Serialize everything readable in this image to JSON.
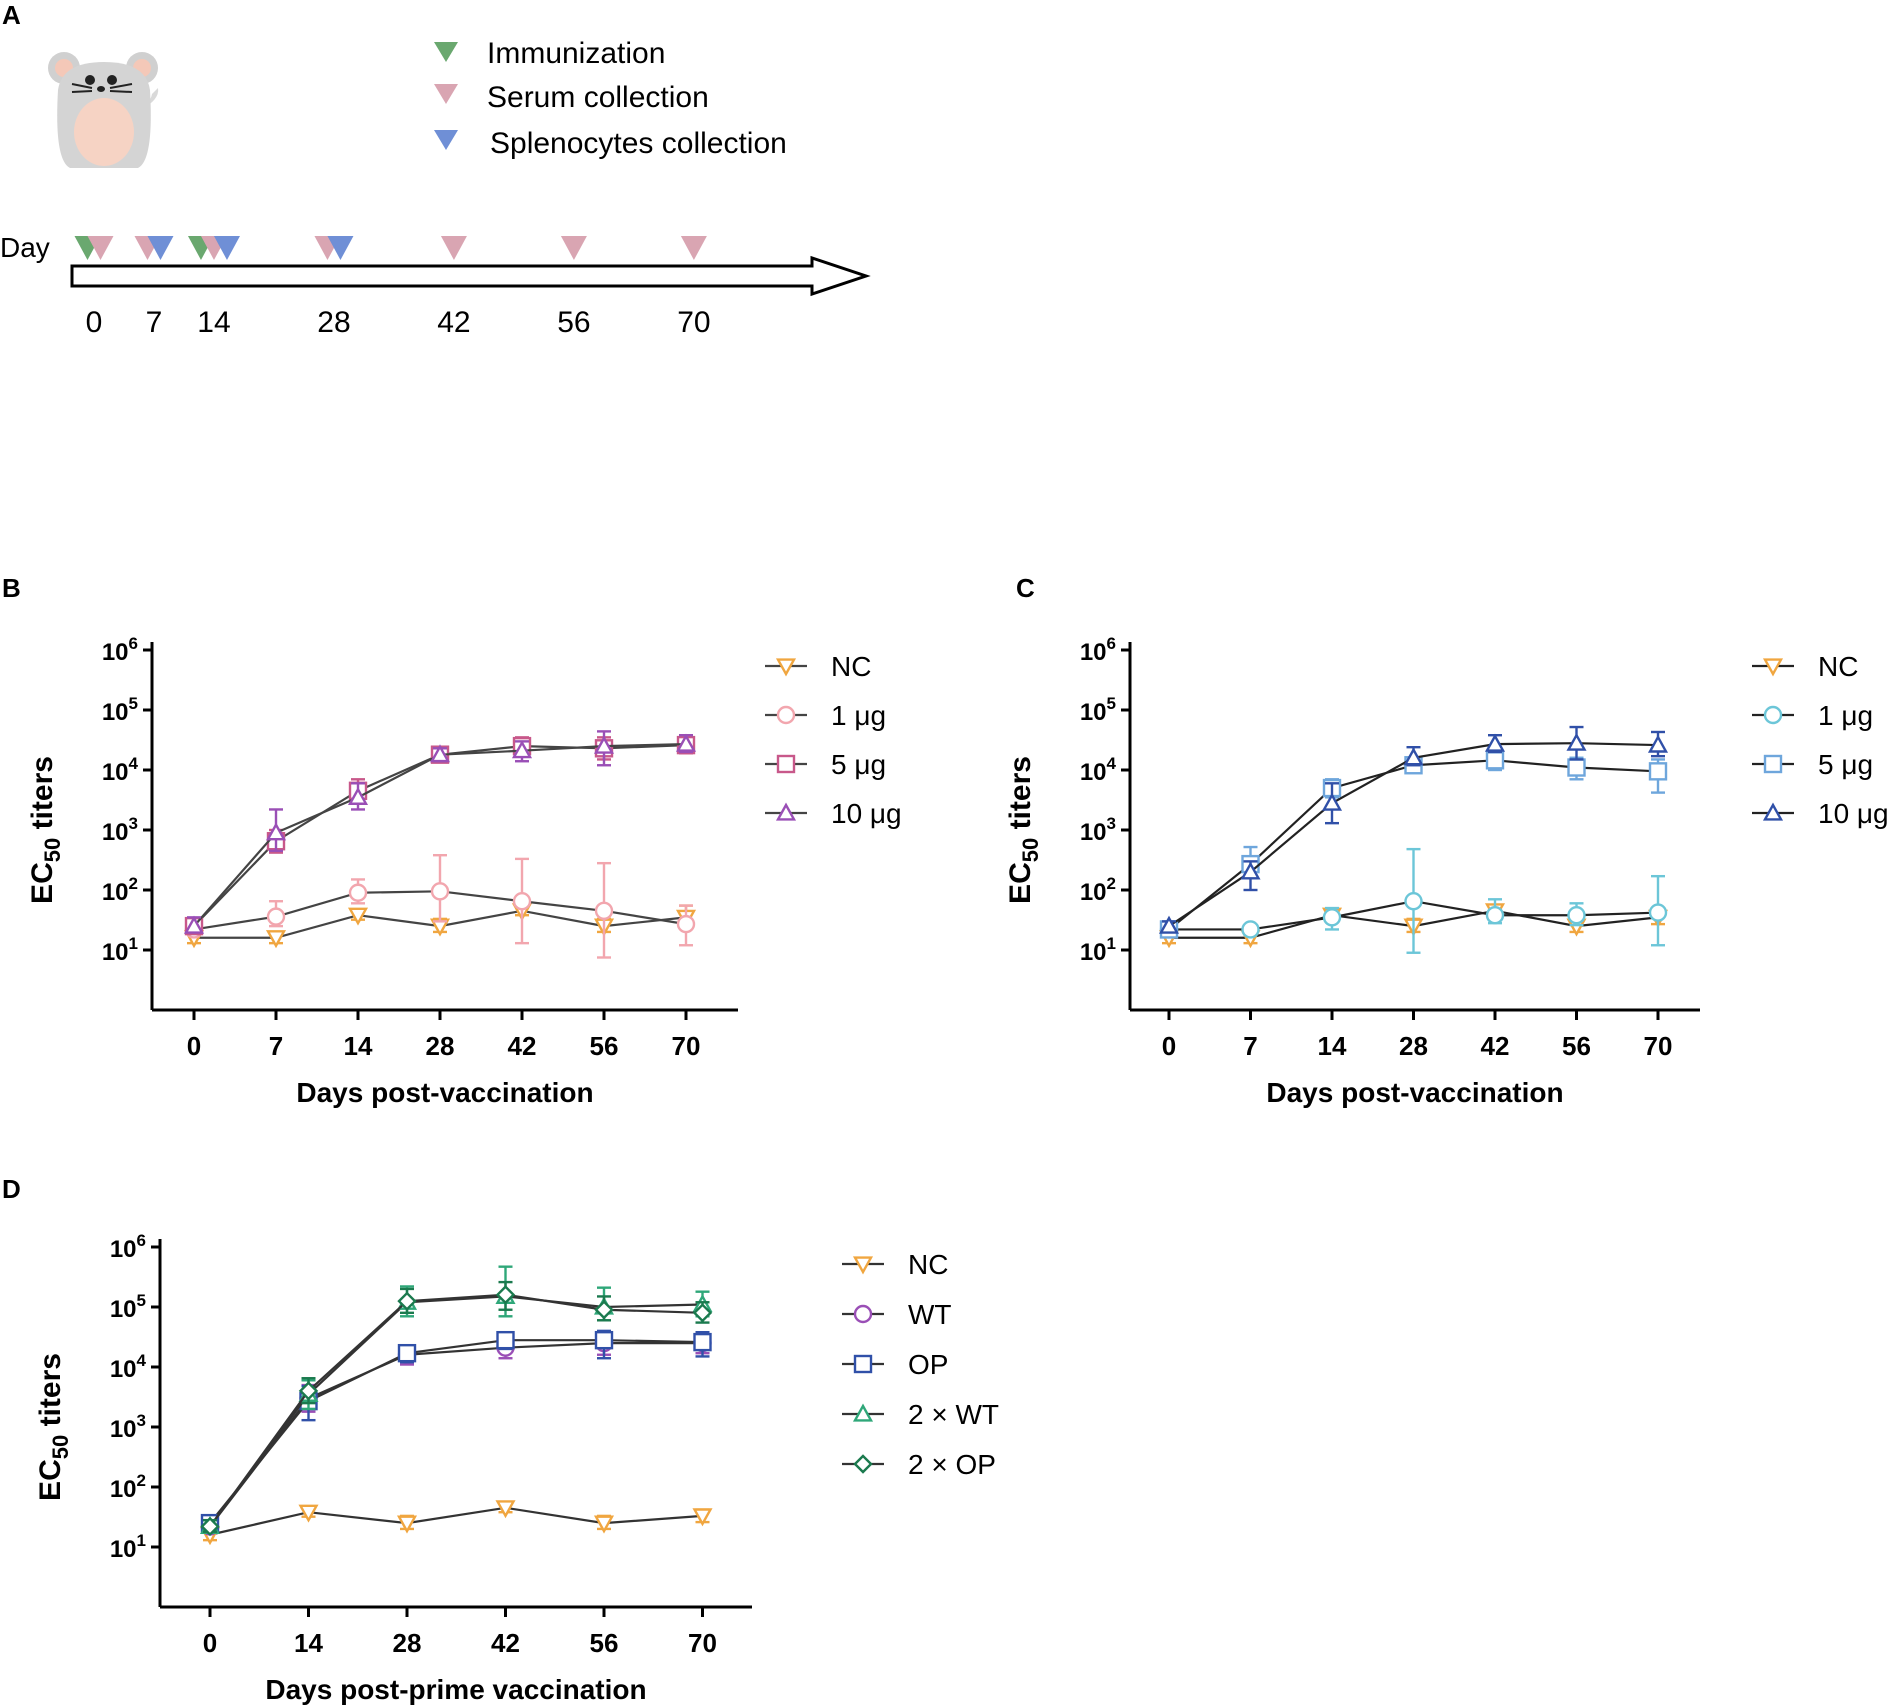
{
  "panel_a": {
    "label": "A",
    "legend": [
      {
        "label": "Immunization",
        "color": "#6aa86f"
      },
      {
        "label": "Serum collection",
        "color": "#d9a5b2"
      },
      {
        "label": "Splenocytes collection",
        "color": "#6f8fd6"
      }
    ],
    "day_label": "Day",
    "days": [
      "0",
      "7",
      "14",
      "28",
      "42",
      "56",
      "70"
    ],
    "events": [
      {
        "day": 0,
        "markers": [
          "immunization",
          "serum"
        ]
      },
      {
        "day": 7,
        "markers": [
          "serum",
          "splenocytes"
        ]
      },
      {
        "day": 14,
        "markers": [
          "immunization",
          "serum",
          "splenocytes"
        ]
      },
      {
        "day": 28,
        "markers": [
          "serum",
          "splenocytes"
        ]
      },
      {
        "day": 42,
        "markers": [
          "serum"
        ]
      },
      {
        "day": 56,
        "markers": [
          "serum"
        ]
      },
      {
        "day": 70,
        "markers": [
          "serum"
        ]
      }
    ]
  },
  "chart_data": [
    {
      "panel": "B",
      "type": "line",
      "xlabel": "Days post-vaccination",
      "ylabel_main": "EC",
      "ylabel_sub": "50",
      "ylabel_rest": " titers",
      "x": [
        0,
        7,
        14,
        28,
        42,
        56,
        70
      ],
      "x_tick_labels": [
        "0",
        "7",
        "14",
        "28",
        "42",
        "56",
        "70"
      ],
      "y_scale": "log10",
      "ylim_exp": [
        0,
        6
      ],
      "y_tick_exponents": [
        "1",
        "2",
        "3",
        "4",
        "5",
        "6"
      ],
      "line_color": "#444444",
      "series": [
        {
          "name": "NC",
          "marker": "triangle-down",
          "color": "#f0a640",
          "values": [
            16,
            16,
            38,
            25,
            45,
            25,
            35
          ],
          "err_hi": [
            20,
            20,
            45,
            33,
            52,
            33,
            55
          ],
          "err_lo": [
            13,
            13,
            32,
            20,
            38,
            20,
            25
          ]
        },
        {
          "name": "1 μg",
          "marker": "circle",
          "color": "#f2a6ae",
          "values": [
            22,
            36,
            90,
            95,
            65,
            45,
            27
          ],
          "err_hi": [
            30,
            65,
            150,
            380,
            330,
            280,
            55
          ],
          "err_lo": [
            18,
            25,
            60,
            30,
            13,
            7.5,
            12
          ]
        },
        {
          "name": "5 μg",
          "marker": "square",
          "color": "#c8588a",
          "values": [
            25,
            650,
            4500,
            18000,
            25000,
            23000,
            26000
          ],
          "err_hi": [
            32,
            1000,
            7000,
            22000,
            35000,
            35000,
            36000
          ],
          "err_lo": [
            20,
            420,
            3000,
            15000,
            17000,
            15000,
            19000
          ]
        },
        {
          "name": "10 μg",
          "marker": "triangle-up",
          "color": "#9a4fb6",
          "values": [
            25,
            900,
            3500,
            18000,
            21000,
            25000,
            27000
          ],
          "err_hi": [
            35,
            2200,
            6000,
            23000,
            30000,
            44000,
            38000
          ],
          "err_lo": [
            20,
            450,
            2200,
            14000,
            14000,
            12000,
            20000
          ]
        }
      ],
      "legend_position": "right"
    },
    {
      "panel": "C",
      "type": "line",
      "xlabel": "Days post-vaccination",
      "ylabel_main": "EC",
      "ylabel_sub": "50",
      "ylabel_rest": " titers",
      "x": [
        0,
        7,
        14,
        28,
        42,
        56,
        70
      ],
      "x_tick_labels": [
        "0",
        "7",
        "14",
        "28",
        "42",
        "56",
        "70"
      ],
      "y_scale": "log10",
      "ylim_exp": [
        0,
        6
      ],
      "y_tick_exponents": [
        "1",
        "2",
        "3",
        "4",
        "5",
        "6"
      ],
      "line_color": "#222222",
      "series": [
        {
          "name": "NC",
          "marker": "triangle-down",
          "color": "#f0a640",
          "values": [
            16,
            16,
            38,
            25,
            45,
            25,
            35
          ],
          "err_hi": [
            20,
            20,
            45,
            33,
            52,
            33,
            45
          ],
          "err_lo": [
            13,
            13,
            32,
            20,
            38,
            20,
            27
          ]
        },
        {
          "name": "1 μg",
          "marker": "circle",
          "color": "#6cc6d8",
          "values": [
            22,
            22,
            35,
            65,
            38,
            38,
            42
          ],
          "err_hi": [
            28,
            26,
            50,
            480,
            70,
            60,
            170
          ],
          "err_lo": [
            18,
            18,
            22,
            9,
            28,
            26,
            12
          ]
        },
        {
          "name": "5 μg",
          "marker": "square",
          "color": "#6ea6dc",
          "values": [
            22,
            270,
            5000,
            12000,
            14500,
            11000,
            9500
          ],
          "err_hi": [
            28,
            520,
            7000,
            15000,
            20000,
            16000,
            15000
          ],
          "err_lo": [
            18,
            160,
            3500,
            9500,
            10000,
            7000,
            4200
          ]
        },
        {
          "name": "10 μg",
          "marker": "triangle-up",
          "color": "#3050a8",
          "values": [
            25,
            200,
            2800,
            16000,
            27000,
            28000,
            26000
          ],
          "err_hi": [
            30,
            300,
            6000,
            24000,
            38000,
            52000,
            43000
          ],
          "err_lo": [
            20,
            100,
            1300,
            12000,
            20000,
            15000,
            17000
          ]
        }
      ],
      "legend_position": "right"
    },
    {
      "panel": "D",
      "type": "line",
      "xlabel": "Days post-prime vaccination",
      "ylabel_main": "EC",
      "ylabel_sub": "50",
      "ylabel_rest": " titers",
      "x": [
        0,
        14,
        28,
        42,
        56,
        70
      ],
      "x_tick_labels": [
        "0",
        "14",
        "28",
        "42",
        "56",
        "70"
      ],
      "y_scale": "log10",
      "ylim_exp": [
        0,
        6
      ],
      "y_tick_exponents": [
        "1",
        "2",
        "3",
        "4",
        "5",
        "6"
      ],
      "line_color": "#333333",
      "series": [
        {
          "name": "NC",
          "marker": "triangle-down",
          "color": "#f0a640",
          "values": [
            16,
            38,
            25,
            45,
            25,
            33
          ],
          "err_hi": [
            20,
            45,
            33,
            52,
            33,
            42
          ],
          "err_lo": [
            13,
            32,
            20,
            38,
            20,
            26
          ]
        },
        {
          "name": "WT",
          "marker": "circle",
          "color": "#9a4fb6",
          "values": [
            22,
            3000,
            16000,
            21000,
            25000,
            25000
          ],
          "err_hi": [
            28,
            5000,
            22000,
            30000,
            36000,
            36000
          ],
          "err_lo": [
            18,
            1800,
            11000,
            14000,
            16000,
            17000
          ]
        },
        {
          "name": "OP",
          "marker": "square",
          "color": "#3050a8",
          "values": [
            25,
            2700,
            17000,
            28000,
            28000,
            26000
          ],
          "err_hi": [
            30,
            4800,
            22000,
            36000,
            40000,
            38000
          ],
          "err_lo": [
            20,
            1300,
            12000,
            20000,
            14000,
            15000
          ]
        },
        {
          "name": "2 × WT",
          "marker": "triangle-up",
          "color": "#2fa779",
          "values": [
            22,
            3500,
            120000,
            150000,
            100000,
            110000
          ],
          "err_hi": [
            28,
            6000,
            220000,
            470000,
            210000,
            180000
          ],
          "err_lo": [
            18,
            2000,
            70000,
            70000,
            60000,
            70000
          ]
        },
        {
          "name": "2 × OP",
          "marker": "diamond",
          "color": "#1b7a4e",
          "values": [
            22,
            4000,
            125000,
            160000,
            90000,
            80000
          ],
          "err_hi": [
            28,
            6500,
            200000,
            260000,
            150000,
            120000
          ],
          "err_lo": [
            18,
            2500,
            80000,
            90000,
            60000,
            55000
          ]
        }
      ],
      "legend_position": "right"
    }
  ]
}
